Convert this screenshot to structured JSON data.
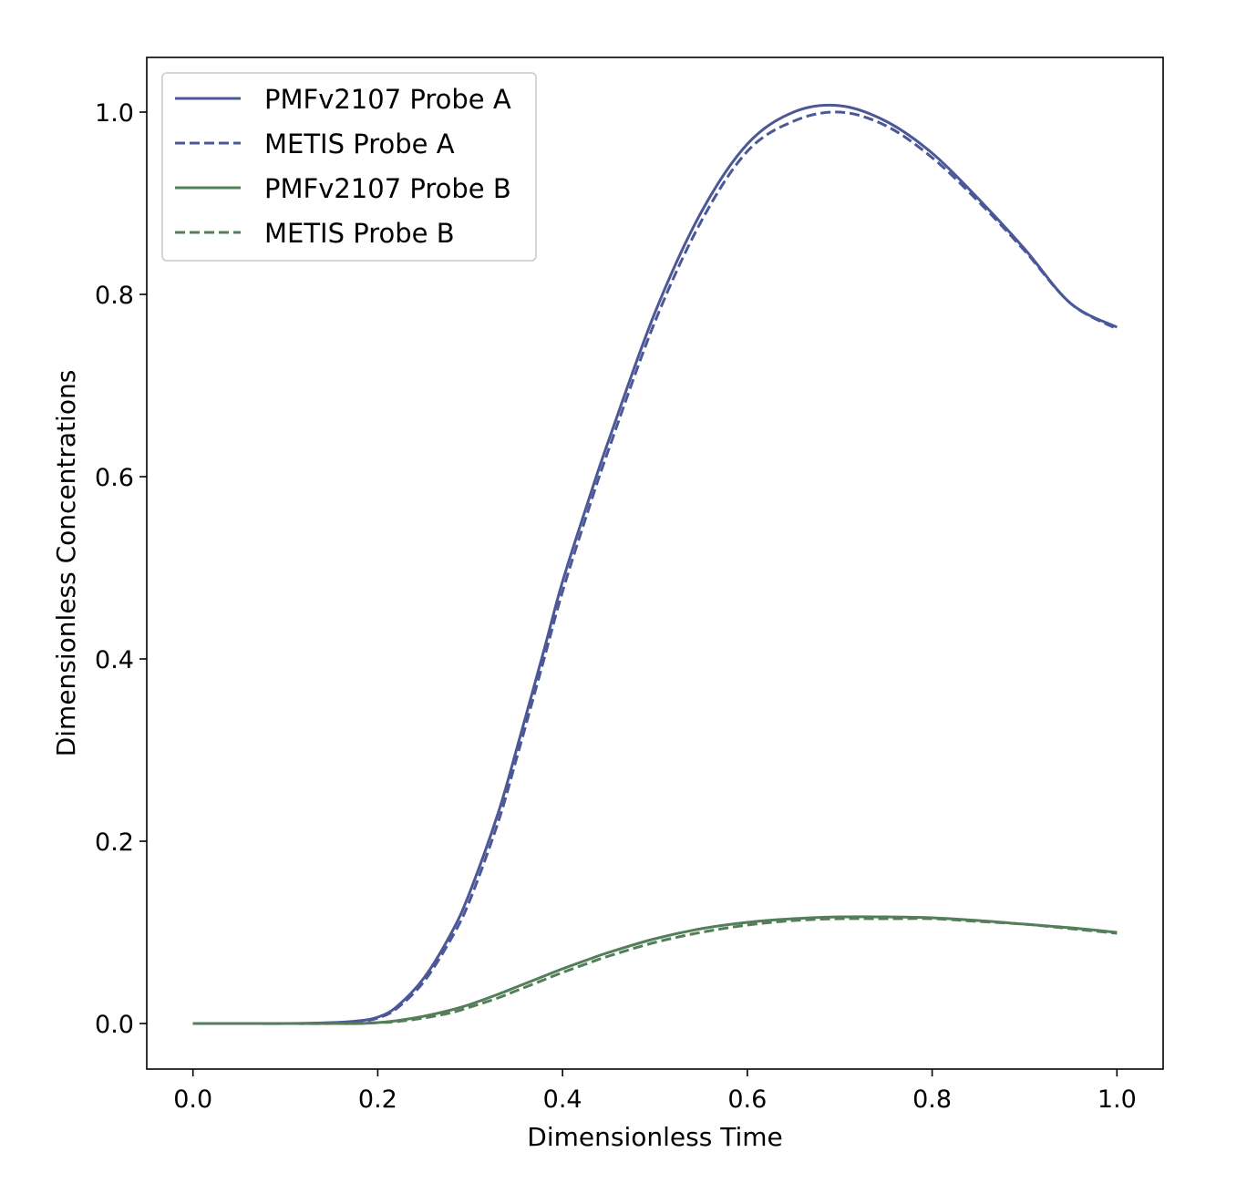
{
  "chart_data": {
    "type": "line",
    "xlabel": "Dimensionless Time",
    "ylabel": "Dimensionless Concentrations",
    "xlim": [
      -0.05,
      1.05
    ],
    "ylim": [
      -0.05,
      1.06
    ],
    "xticks": [
      "0.0",
      "0.2",
      "0.4",
      "0.6",
      "0.8",
      "1.0"
    ],
    "yticks": [
      "0.0",
      "0.2",
      "0.4",
      "0.6",
      "0.8",
      "1.0"
    ],
    "grid": false,
    "legend_position": "top-left",
    "x": [
      0.0,
      0.05,
      0.1,
      0.15,
      0.18,
      0.2,
      0.22,
      0.25,
      0.28,
      0.3,
      0.33,
      0.35,
      0.38,
      0.4,
      0.43,
      0.45,
      0.5,
      0.55,
      0.6,
      0.65,
      0.7,
      0.75,
      0.8,
      0.85,
      0.9,
      0.95,
      1.0
    ],
    "series": [
      {
        "name": "PMFv2107 Probe A",
        "color": "#4b5797",
        "style": "solid",
        "values": [
          0.0,
          0.0,
          0.0,
          0.001,
          0.003,
          0.007,
          0.018,
          0.05,
          0.1,
          0.145,
          0.23,
          0.3,
          0.41,
          0.485,
          0.58,
          0.64,
          0.78,
          0.89,
          0.965,
          1.0,
          1.007,
          0.99,
          0.955,
          0.905,
          0.85,
          0.79,
          0.764
        ]
      },
      {
        "name": "METIS Probe A",
        "color": "#4b5797",
        "style": "dashed",
        "values": [
          0.0,
          0.0,
          0.0,
          0.0,
          0.002,
          0.006,
          0.016,
          0.046,
          0.094,
          0.136,
          0.22,
          0.29,
          0.4,
          0.474,
          0.57,
          0.63,
          0.77,
          0.88,
          0.957,
          0.99,
          1.0,
          0.985,
          0.95,
          0.902,
          0.848,
          0.79,
          0.762
        ]
      },
      {
        "name": "PMFv2107 Probe B",
        "color": "#547e5a",
        "style": "solid",
        "values": [
          0.0,
          0.0,
          0.0,
          0.0,
          0.0,
          0.001,
          0.003,
          0.008,
          0.015,
          0.021,
          0.032,
          0.04,
          0.052,
          0.06,
          0.071,
          0.078,
          0.093,
          0.104,
          0.111,
          0.115,
          0.117,
          0.117,
          0.116,
          0.113,
          0.109,
          0.105,
          0.1
        ]
      },
      {
        "name": "METIS Probe B",
        "color": "#547e5a",
        "style": "dashed",
        "values": [
          0.0,
          0.0,
          0.0,
          0.0,
          0.0,
          0.001,
          0.002,
          0.006,
          0.012,
          0.018,
          0.028,
          0.036,
          0.048,
          0.056,
          0.067,
          0.074,
          0.089,
          0.1,
          0.108,
          0.113,
          0.115,
          0.115,
          0.115,
          0.112,
          0.109,
          0.104,
          0.099
        ]
      }
    ]
  }
}
